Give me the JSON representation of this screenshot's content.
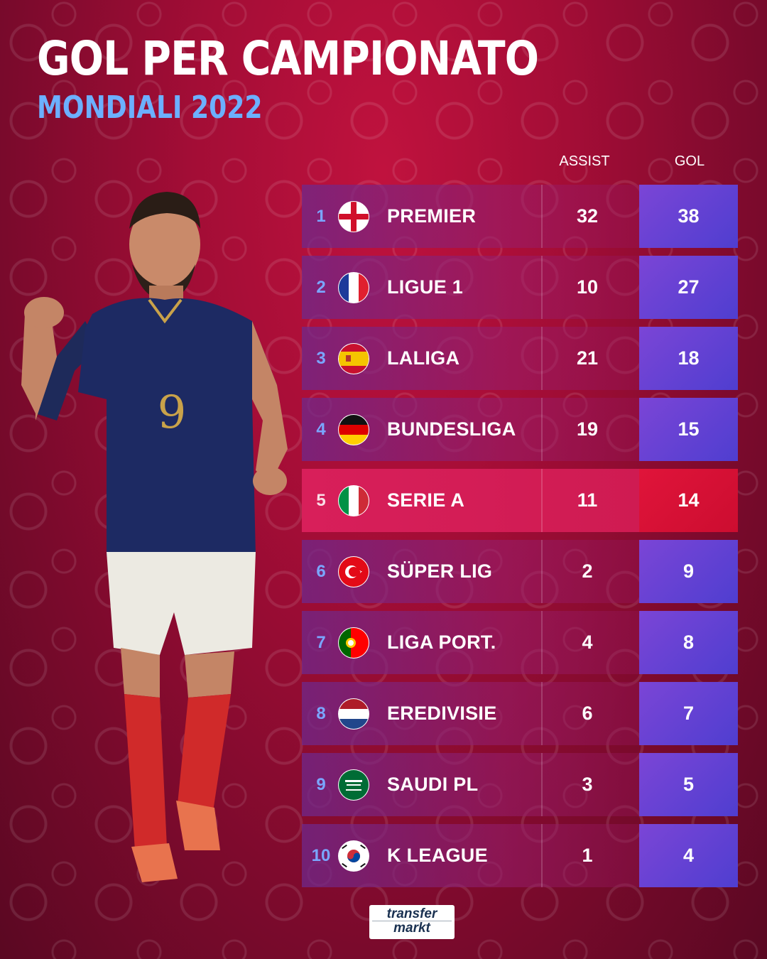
{
  "title": "GOL PER CAMPIONATO",
  "subtitle": "MONDIALI 2022",
  "headers": {
    "assist": "ASSIST",
    "gol": "GOL"
  },
  "colors": {
    "accent_blue": "#6cb0ff",
    "highlight_red": "#e0143a",
    "gol_purple": "#5a42d2"
  },
  "rows": [
    {
      "rank": "1",
      "flag": "england-flag-icon",
      "league": "PREMIER",
      "assist": "32",
      "gol": "38"
    },
    {
      "rank": "2",
      "flag": "france-flag-icon",
      "league": "LIGUE 1",
      "assist": "10",
      "gol": "27"
    },
    {
      "rank": "3",
      "flag": "spain-flag-icon",
      "league": "LALIGA",
      "assist": "21",
      "gol": "18"
    },
    {
      "rank": "4",
      "flag": "germany-flag-icon",
      "league": "BUNDESLIGA",
      "assist": "19",
      "gol": "15"
    },
    {
      "rank": "5",
      "flag": "italy-flag-icon",
      "league": "SERIE A",
      "assist": "11",
      "gol": "14"
    },
    {
      "rank": "6",
      "flag": "turkey-flag-icon",
      "league": "SÜPER LIG",
      "assist": "2",
      "gol": "9"
    },
    {
      "rank": "7",
      "flag": "portugal-flag-icon",
      "league": "LIGA PORT.",
      "assist": "4",
      "gol": "8"
    },
    {
      "rank": "8",
      "flag": "netherlands-flag-icon",
      "league": "EREDIVISIE",
      "assist": "6",
      "gol": "7"
    },
    {
      "rank": "9",
      "flag": "saudi-arabia-flag-icon",
      "league": "SAUDI PL",
      "assist": "3",
      "gol": "5"
    },
    {
      "rank": "10",
      "flag": "south-korea-flag-icon",
      "league": "K LEAGUE",
      "assist": "1",
      "gol": "4"
    }
  ],
  "logo": {
    "line1": "transfer",
    "line2": "markt"
  }
}
